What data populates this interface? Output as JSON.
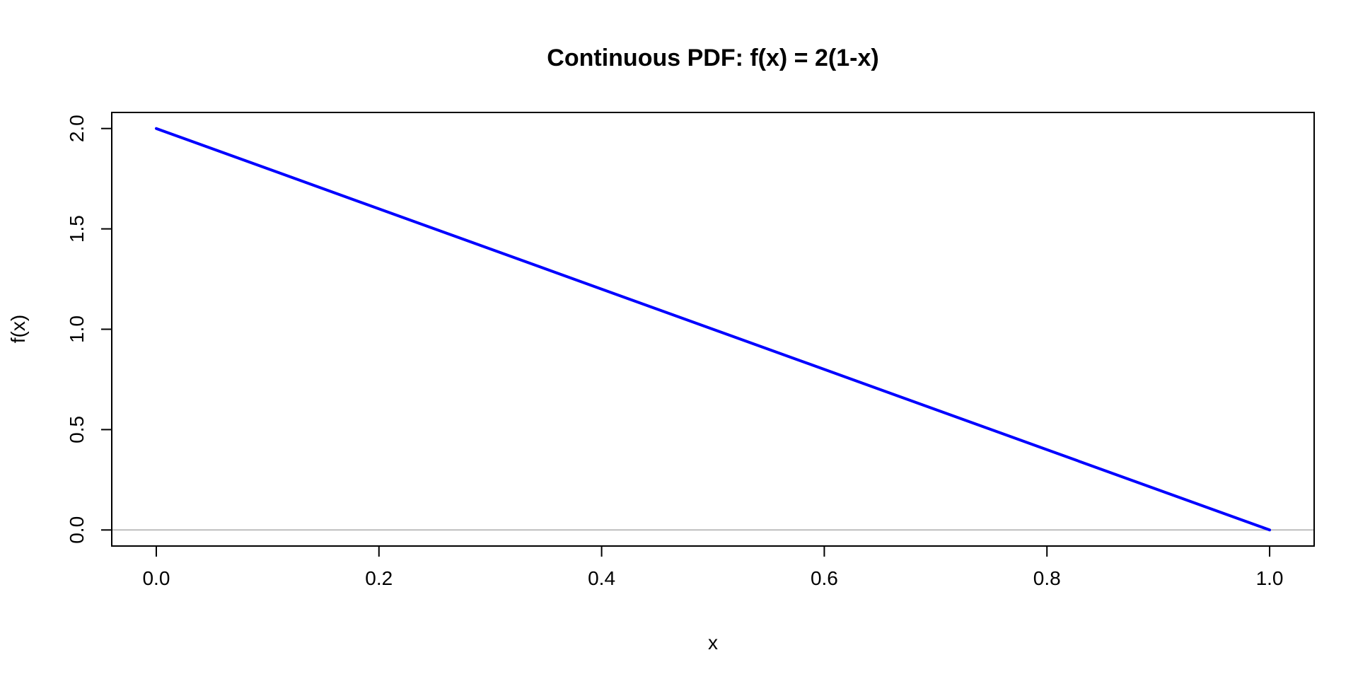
{
  "chart_data": {
    "type": "line",
    "title": "Continuous PDF: f(x) = 2(1-x)",
    "xlabel": "x",
    "ylabel": "f(x)",
    "xlim": [
      -0.04,
      1.04
    ],
    "ylim": [
      -0.08,
      2.08
    ],
    "x_ticks": [
      0.0,
      0.2,
      0.4,
      0.6,
      0.8,
      1.0
    ],
    "x_tick_labels": [
      "0.0",
      "0.2",
      "0.4",
      "0.6",
      "0.8",
      "1.0"
    ],
    "y_ticks": [
      0.0,
      0.5,
      1.0,
      1.5,
      2.0
    ],
    "y_tick_labels": [
      "0.0",
      "0.5",
      "1.0",
      "1.5",
      "2.0"
    ],
    "grid": false,
    "series": [
      {
        "x": [
          0.0,
          1.0
        ],
        "values": [
          2.0,
          0.0
        ],
        "color": "#0000ff"
      }
    ],
    "reference_lines": [
      {
        "orientation": "horizontal",
        "y": 0.0,
        "color": "#bebebe"
      }
    ]
  }
}
